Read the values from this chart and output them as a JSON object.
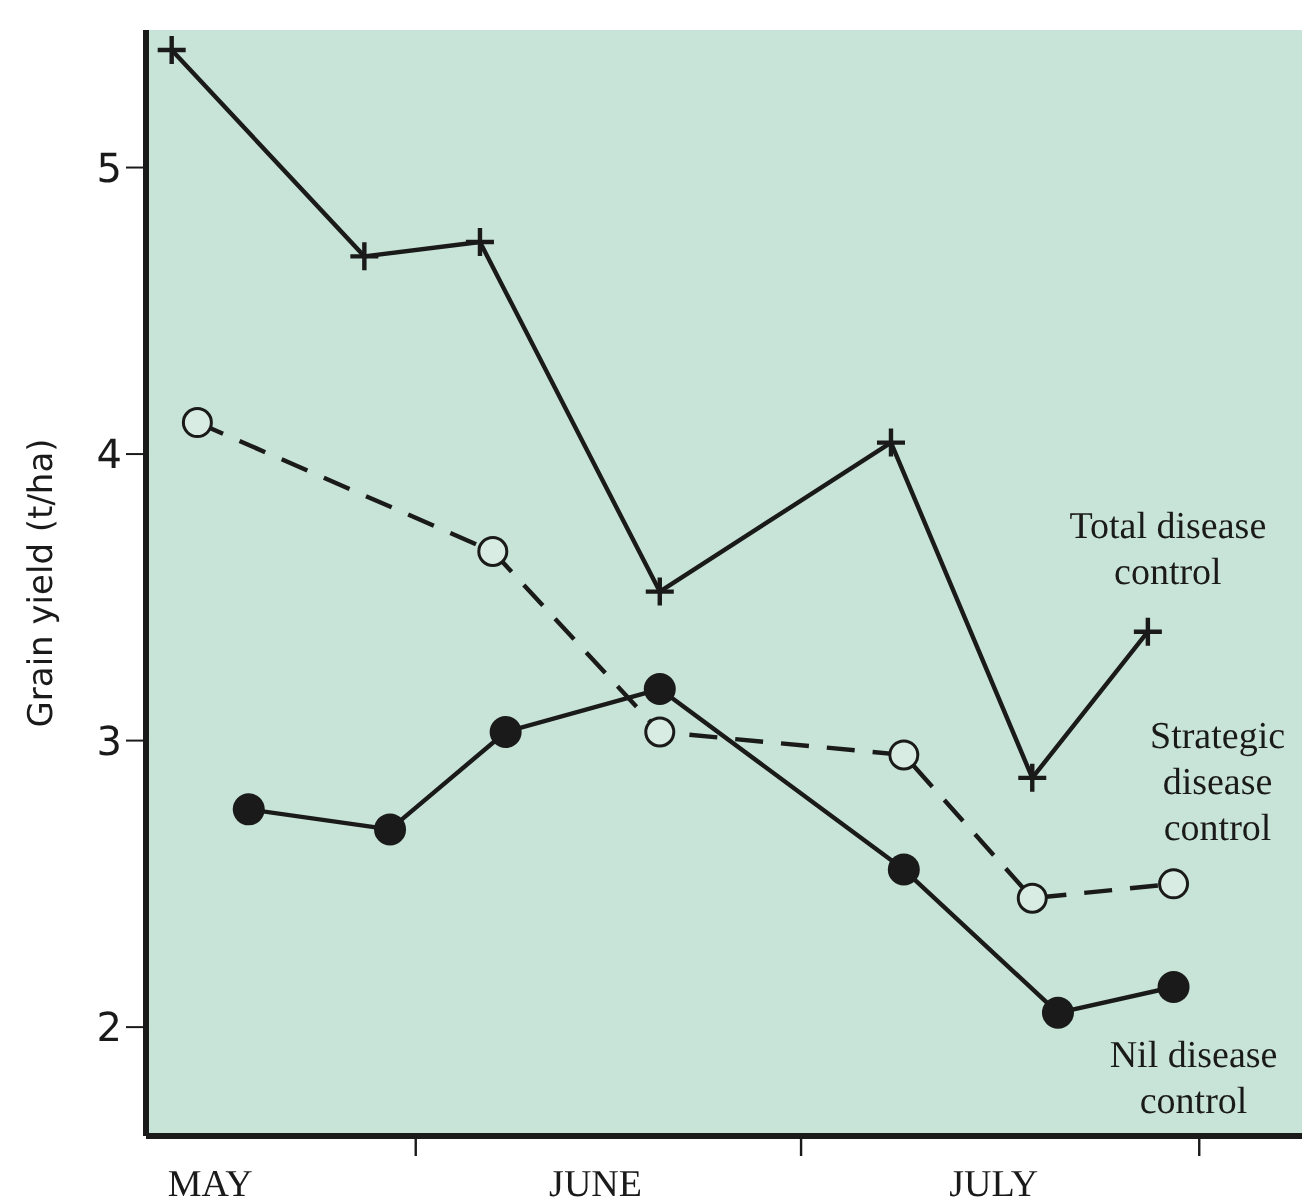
{
  "chart_data": {
    "type": "line",
    "ylabel": "Grain yield (t/ha)",
    "xlim": [
      "--05-11",
      "--08-09"
    ],
    "xticks": [
      {
        "value": "--05-16",
        "label": "MAY"
      },
      {
        "value": "--06-01",
        "label": null
      },
      {
        "value": "--06-15",
        "label": "JUNE"
      },
      {
        "value": "--07-01",
        "label": null
      },
      {
        "value": "--07-16",
        "label": "JULY"
      },
      {
        "value": "--08-01",
        "label": null
      }
    ],
    "ylim": [
      1.62,
      5.48
    ],
    "yticks": [
      2,
      3,
      4,
      5
    ],
    "grid": false,
    "legend": false,
    "series": [
      {
        "name": "Total disease control",
        "color": "#1a1a1a",
        "marker": "cross",
        "line_style": "solid",
        "x": [
          "--05-13",
          "--05-28",
          "--06-06",
          "--06-20",
          "--07-08",
          "--07-19",
          "--07-28"
        ],
        "values": [
          5.41,
          4.69,
          4.74,
          3.52,
          4.04,
          2.87,
          3.38
        ]
      },
      {
        "name": "Strategic disease control",
        "color": "#1a1a1a",
        "marker": "circle",
        "line_style": "dashed",
        "x": [
          "--05-15",
          "--06-07",
          "--06-20",
          "--07-09",
          "--07-19",
          "--07-30"
        ],
        "values": [
          4.11,
          3.66,
          3.03,
          2.95,
          2.45,
          2.5
        ]
      },
      {
        "name": "Nil disease control",
        "color": "#1a1a1a",
        "marker": "circle",
        "line_style": "solid",
        "x": [
          "--05-19",
          "--05-30",
          "--06-08",
          "--06-20",
          "--07-09",
          "--07-21",
          "--07-30"
        ],
        "values": [
          2.76,
          2.69,
          3.03,
          3.18,
          2.55,
          2.05,
          2.14
        ]
      }
    ]
  }
}
